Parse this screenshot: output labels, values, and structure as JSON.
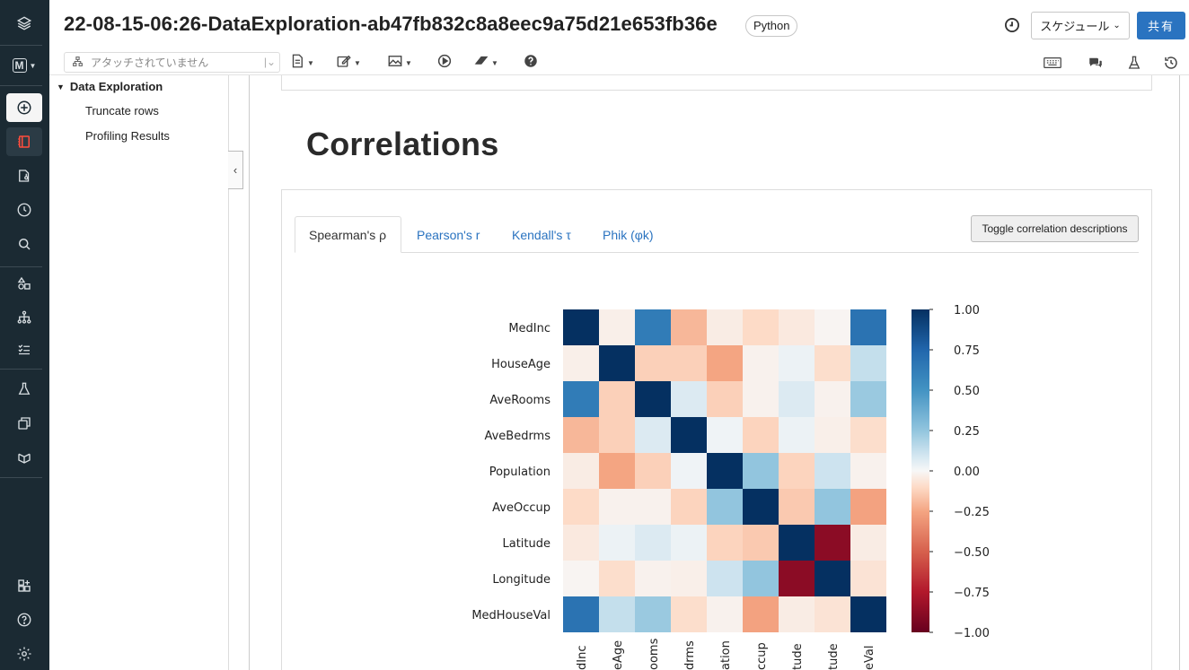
{
  "header": {
    "title": "22-08-15-06:26-DataExploration-ab47fb832c8a8eec9a75d21e653fb36e",
    "language": "Python",
    "schedule_label": "スケジュール",
    "share_label": "共有"
  },
  "toolbar": {
    "attach_placeholder": "アタッチされていません",
    "icons_left": [
      "file-icon",
      "edit-icon",
      "image-icon",
      "run-icon",
      "clear-icon",
      "help-icon"
    ],
    "icons_right": [
      "keyboard-icon",
      "comments-icon",
      "experiment-icon",
      "revision-history-icon"
    ]
  },
  "rail": {
    "workspace_initial": "M",
    "icons": [
      "layers-logo-icon",
      "workspace-icon",
      "new-icon",
      "notebook-icon",
      "repos-icon",
      "recents-icon",
      "search-icon",
      "data-icon",
      "compute-icon",
      "workflows-icon",
      "experiments-icon",
      "features-icon",
      "models-icon",
      "partner-icon",
      "help-icon",
      "settings-icon"
    ]
  },
  "toc": {
    "heading": "Data Exploration",
    "items": [
      "Truncate rows",
      "Profiling Results"
    ]
  },
  "section": {
    "title": "Correlations"
  },
  "tabs": [
    {
      "label": "Spearman's ρ",
      "active": true
    },
    {
      "label": "Pearson's r",
      "active": false
    },
    {
      "label": "Kendall's τ",
      "active": false
    },
    {
      "label": "Phik (φk)",
      "active": false
    }
  ],
  "toggle_label": "Toggle correlation descriptions",
  "chart_data": {
    "type": "heatmap",
    "title": "",
    "rows": [
      "MedInc",
      "HouseAge",
      "AveRooms",
      "AveBedrms",
      "Population",
      "AveOccup",
      "Latitude",
      "Longitude",
      "MedHouseVal"
    ],
    "columns_visible": [
      "dInc",
      "eAge",
      "ooms",
      "drms",
      "ation",
      "ccup",
      "tude",
      "tude",
      "eVal"
    ],
    "values": [
      [
        1.0,
        -0.03,
        0.63,
        -0.2,
        -0.04,
        -0.1,
        -0.05,
        -0.01,
        0.68
      ],
      [
        -0.03,
        1.0,
        -0.13,
        -0.13,
        -0.25,
        -0.02,
        0.03,
        -0.09,
        0.13
      ],
      [
        0.63,
        -0.13,
        1.0,
        0.07,
        -0.13,
        -0.02,
        0.07,
        -0.02,
        0.23
      ],
      [
        -0.2,
        -0.13,
        0.07,
        1.0,
        0.02,
        -0.12,
        0.03,
        -0.03,
        -0.09
      ],
      [
        -0.04,
        -0.25,
        -0.13,
        0.02,
        1.0,
        0.25,
        -0.12,
        0.11,
        -0.02
      ],
      [
        -0.1,
        -0.02,
        -0.02,
        -0.12,
        0.25,
        1.0,
        -0.15,
        0.25,
        -0.26
      ],
      [
        -0.05,
        0.03,
        0.07,
        0.03,
        -0.12,
        -0.15,
        1.0,
        -0.88,
        -0.04
      ],
      [
        -0.01,
        -0.09,
        -0.02,
        -0.03,
        0.11,
        0.25,
        -0.88,
        1.0,
        -0.07
      ],
      [
        0.68,
        0.13,
        0.23,
        -0.09,
        -0.02,
        -0.26,
        -0.04,
        -0.07,
        1.0
      ]
    ],
    "colorbar": {
      "min": -1.0,
      "max": 1.0,
      "ticks": [
        "1.00",
        "0.75",
        "0.50",
        "0.25",
        "0.00",
        "−0.25",
        "−0.50",
        "−0.75",
        "−1.00"
      ],
      "colormap": "RdBu"
    }
  }
}
